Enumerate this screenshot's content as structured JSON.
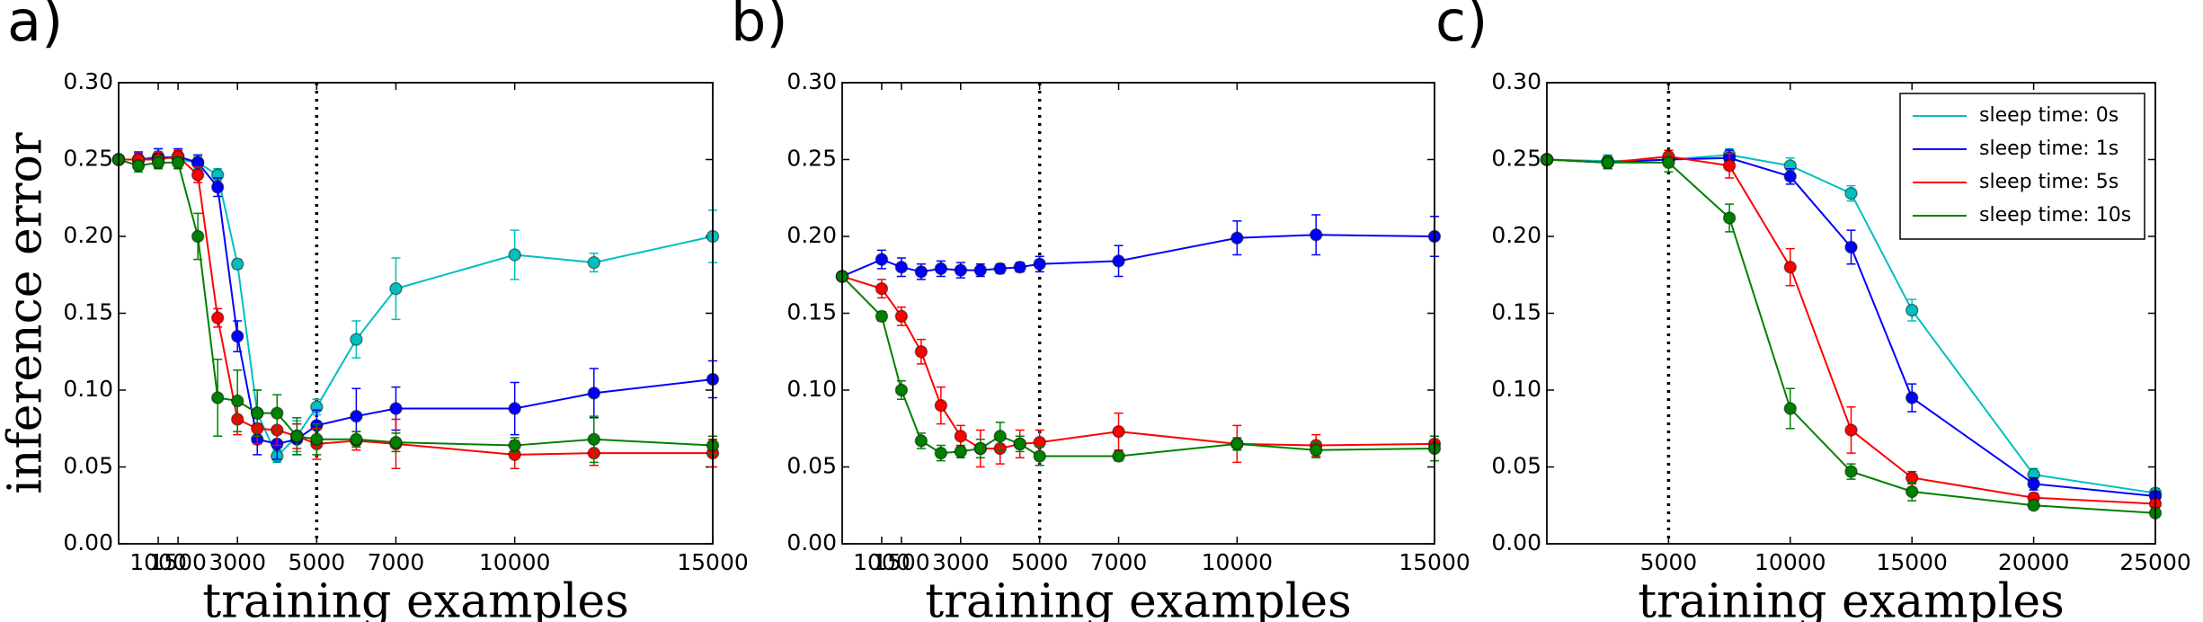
{
  "chart_data": [
    {
      "type": "line",
      "panel_label": "a)",
      "xlabel": "training examples",
      "ylabel": "inference error",
      "xlim": [
        0,
        15000
      ],
      "xticks": [
        1000,
        1500,
        3000,
        5000,
        7000,
        10000,
        15000
      ],
      "ylim": [
        0,
        0.3
      ],
      "yticks": [
        {
          "value": 0,
          "label": "0.00"
        },
        0.05,
        {
          "value": 0.1,
          "label": "0.10"
        },
        0.15,
        {
          "value": 0.2,
          "label": "0.20"
        },
        0.25,
        {
          "value": 0.3,
          "label": "0.30"
        }
      ],
      "vline": 5000,
      "x": [
        0,
        500,
        1000,
        1500,
        2000,
        2500,
        3000,
        3500,
        4000,
        4500,
        5000,
        6000,
        7000,
        10000,
        12000,
        15000
      ],
      "series": [
        {
          "color": "#00bfbf",
          "values": [
            0.25,
            0.25,
            0.252,
            0.25,
            0.248,
            0.24,
            0.182,
            0.085,
            0.057,
            0.07,
            0.089,
            0.133,
            0.166,
            0.188,
            0.183,
            0.2
          ],
          "errors": [
            0,
            0.004,
            0.005,
            0.005,
            0.004,
            0.004,
            0.003,
            0.015,
            0.004,
            0.01,
            0.005,
            0.012,
            0.02,
            0.016,
            0.006,
            0.017
          ]
        },
        {
          "color": "#0000ff",
          "values": [
            0.25,
            0.25,
            0.251,
            0.252,
            0.248,
            0.232,
            0.135,
            0.068,
            0.065,
            0.068,
            0.077,
            0.083,
            0.088,
            0.088,
            0.098,
            0.107
          ],
          "errors": [
            0,
            0.005,
            0.006,
            0.005,
            0.005,
            0.006,
            0.01,
            0.01,
            0.01,
            0.01,
            0.01,
            0.018,
            0.014,
            0.017,
            0.016,
            0.012
          ]
        },
        {
          "color": "#ff0000",
          "values": [
            0.25,
            0.25,
            0.25,
            0.252,
            0.24,
            0.147,
            0.081,
            0.075,
            0.074,
            0.07,
            0.065,
            0.067,
            0.065,
            0.058,
            0.059,
            0.059
          ],
          "errors": [
            0,
            0.004,
            0.005,
            0.004,
            0.005,
            0.006,
            0.01,
            0.01,
            0.01,
            0.008,
            0.01,
            0.006,
            0.016,
            0.009,
            0.008,
            0.009
          ]
        },
        {
          "color": "#008000",
          "values": [
            0.25,
            0.246,
            0.248,
            0.248,
            0.2,
            0.095,
            0.093,
            0.085,
            0.085,
            0.07,
            0.068,
            0.068,
            0.066,
            0.064,
            0.068,
            0.064
          ],
          "errors": [
            0,
            0.004,
            0.004,
            0.004,
            0.015,
            0.025,
            0.02,
            0.015,
            0.012,
            0.012,
            0.01,
            0.005,
            0.006,
            0.005,
            0.015,
            0.006
          ]
        }
      ]
    },
    {
      "type": "line",
      "panel_label": "b)",
      "xlabel": "training examples",
      "xlim": [
        0,
        15000
      ],
      "xticks": [
        1000,
        1500,
        3000,
        5000,
        7000,
        10000,
        15000
      ],
      "ylim": [
        0,
        0.3
      ],
      "yticks": [
        {
          "value": 0,
          "label": "0.00"
        },
        0.05,
        {
          "value": 0.1,
          "label": "0.10"
        },
        0.15,
        {
          "value": 0.2,
          "label": "0.20"
        },
        0.25,
        {
          "value": 0.3,
          "label": "0.30"
        }
      ],
      "vline": 5000,
      "x": [
        0,
        1000,
        1500,
        2000,
        2500,
        3000,
        3500,
        4000,
        4500,
        5000,
        7000,
        10000,
        12000,
        15000
      ],
      "series": [
        {
          "color": "#0000ff",
          "values": [
            0.174,
            0.185,
            0.18,
            0.177,
            0.179,
            0.178,
            0.178,
            0.179,
            0.18,
            0.182,
            0.184,
            0.199,
            0.201,
            0.2
          ],
          "errors": [
            0,
            0.006,
            0.006,
            0.005,
            0.005,
            0.005,
            0.004,
            0.003,
            0.003,
            0.005,
            0.01,
            0.011,
            0.013,
            0.013
          ]
        },
        {
          "color": "#ff0000",
          "values": [
            0.174,
            0.166,
            0.148,
            0.125,
            0.09,
            0.07,
            0.062,
            0.062,
            0.065,
            0.066,
            0.073,
            0.065,
            0.064,
            0.065
          ],
          "errors": [
            0,
            0.006,
            0.006,
            0.008,
            0.012,
            0.007,
            0.012,
            0.01,
            0.009,
            0.008,
            0.012,
            0.012,
            0.007,
            0.005
          ]
        },
        {
          "color": "#008000",
          "values": [
            0.174,
            0.148,
            0.1,
            0.067,
            0.059,
            0.06,
            0.062,
            0.07,
            0.065,
            0.057,
            0.057,
            0.065,
            0.061,
            0.062
          ],
          "errors": [
            0,
            0.003,
            0.006,
            0.005,
            0.005,
            0.004,
            0.006,
            0.009,
            0.005,
            0.006,
            0.003,
            0.004,
            0.005,
            0.008
          ]
        }
      ]
    },
    {
      "type": "line",
      "panel_label": "c)",
      "xlabel": "training examples",
      "xlim": [
        0,
        25000
      ],
      "xticks": [
        5000,
        10000,
        15000,
        20000,
        25000
      ],
      "ylim": [
        0,
        0.3
      ],
      "yticks": [
        {
          "value": 0,
          "label": "0.00"
        },
        0.05,
        {
          "value": 0.1,
          "label": "0.10"
        },
        0.15,
        {
          "value": 0.2,
          "label": "0.20"
        },
        0.25,
        {
          "value": 0.3,
          "label": "0.30"
        }
      ],
      "vline": 5000,
      "legend": "upper right",
      "x": [
        0,
        2500,
        5000,
        7500,
        10000,
        12500,
        15000,
        20000,
        25000
      ],
      "series": [
        {
          "name": "sleep time: 0s",
          "color": "#00bfbf",
          "values": [
            0.25,
            0.249,
            0.25,
            0.253,
            0.246,
            0.228,
            0.152,
            0.045,
            0.033
          ],
          "errors": [
            0,
            0.004,
            0.004,
            0.004,
            0.005,
            0.005,
            0.007,
            0.004,
            0.003
          ]
        },
        {
          "name": "sleep time: 1s",
          "color": "#0000ff",
          "values": [
            0.25,
            0.248,
            0.25,
            0.251,
            0.239,
            0.193,
            0.095,
            0.039,
            0.031
          ],
          "errors": [
            0,
            0.004,
            0.004,
            0.005,
            0.005,
            0.011,
            0.009,
            0.004,
            0.003
          ]
        },
        {
          "name": "sleep time: 5s",
          "color": "#ff0000",
          "values": [
            0.25,
            0.248,
            0.252,
            0.246,
            0.18,
            0.074,
            0.043,
            0.03,
            0.026
          ],
          "errors": [
            0,
            0.004,
            0.004,
            0.008,
            0.012,
            0.015,
            0.004,
            0.003,
            0.002
          ]
        },
        {
          "name": "sleep time: 10s",
          "color": "#008000",
          "values": [
            0.25,
            0.248,
            0.248,
            0.212,
            0.088,
            0.047,
            0.034,
            0.025,
            0.02
          ],
          "errors": [
            0,
            0.004,
            0.006,
            0.009,
            0.013,
            0.005,
            0.006,
            0.002,
            0.002
          ]
        }
      ]
    }
  ]
}
